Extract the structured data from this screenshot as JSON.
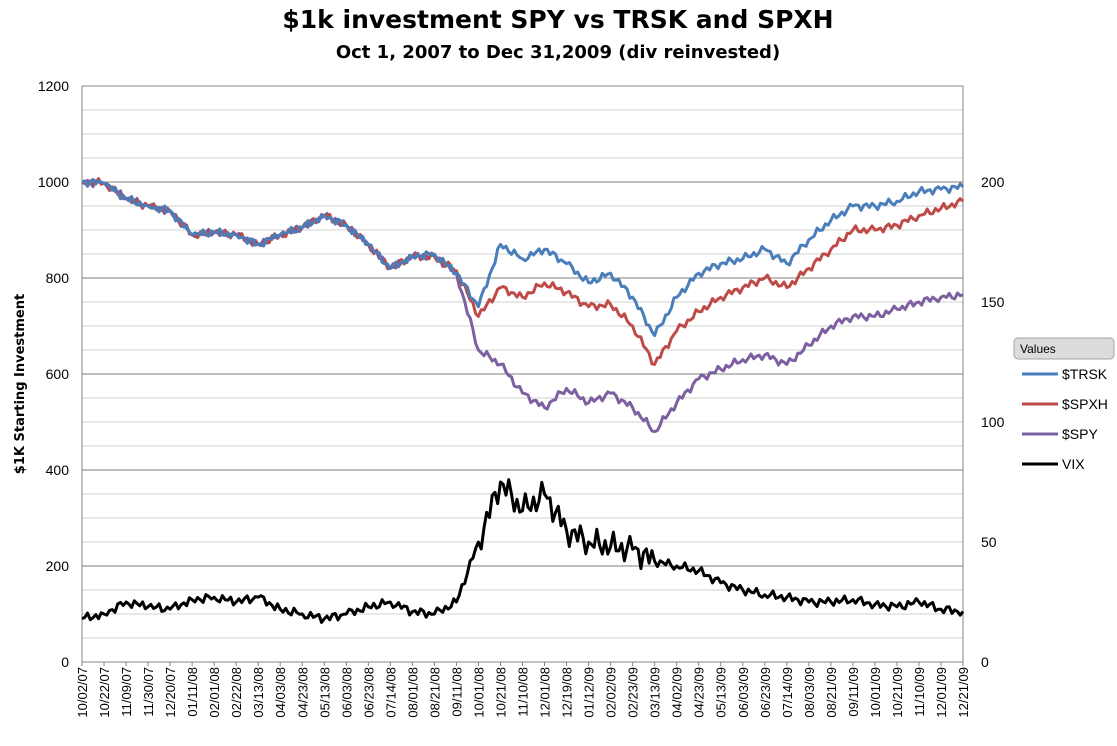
{
  "chart_data": {
    "type": "line",
    "title": "$1k investment SPY vs TRSK and SPXH",
    "subtitle": "Oct 1, 2007 to Dec 31,2009 (div reinvested)",
    "ylabel": "$1K Starting Investment",
    "ylim": [
      0,
      1200
    ],
    "y_ticks": [
      "0",
      "200",
      "400",
      "600",
      "800",
      "1000",
      "1200"
    ],
    "y2lim": [
      0,
      240
    ],
    "y2_ticks": [
      "0",
      "50",
      "100",
      "150",
      "200"
    ],
    "x": [
      "10/02/07",
      "10/22/07",
      "11/09/07",
      "11/30/07",
      "12/20/07",
      "01/11/08",
      "02/01/08",
      "02/22/08",
      "03/13/08",
      "04/03/08",
      "04/23/08",
      "05/13/08",
      "06/03/08",
      "06/23/08",
      "07/14/08",
      "08/01/08",
      "08/21/08",
      "09/11/08",
      "10/01/08",
      "10/21/08",
      "11/10/08",
      "12/01/08",
      "12/19/08",
      "01/12/09",
      "02/02/09",
      "02/23/09",
      "03/13/09",
      "04/02/09",
      "04/23/09",
      "05/13/09",
      "06/03/09",
      "06/23/09",
      "07/14/09",
      "08/03/09",
      "08/21/09",
      "09/11/09",
      "10/01/09",
      "10/21/09",
      "11/10/09",
      "12/01/09",
      "12/21/09"
    ],
    "legend": {
      "title": "Values",
      "position": "right"
    },
    "grid": true,
    "series": [
      {
        "name": "$TRSK",
        "axis": "left",
        "color": "#4a7ebb",
        "values": [
          1000,
          998,
          965,
          950,
          940,
          890,
          895,
          890,
          870,
          890,
          905,
          930,
          910,
          870,
          820,
          845,
          850,
          810,
          740,
          870,
          840,
          860,
          830,
          790,
          810,
          760,
          680,
          760,
          810,
          830,
          840,
          860,
          830,
          880,
          920,
          950,
          950,
          960,
          980,
          985,
          990
        ]
      },
      {
        "name": "$SPXH",
        "axis": "left",
        "color": "#be4b48",
        "values": [
          1000,
          998,
          965,
          950,
          940,
          890,
          895,
          890,
          870,
          890,
          905,
          930,
          910,
          870,
          820,
          845,
          845,
          815,
          720,
          780,
          760,
          790,
          770,
          740,
          745,
          700,
          620,
          690,
          730,
          760,
          780,
          800,
          780,
          820,
          860,
          900,
          900,
          910,
          930,
          945,
          960
        ]
      },
      {
        "name": "$SPY",
        "axis": "left",
        "color": "#7d60a0",
        "values": [
          1000,
          998,
          965,
          950,
          940,
          890,
          895,
          890,
          870,
          890,
          905,
          930,
          910,
          870,
          820,
          845,
          845,
          810,
          650,
          620,
          560,
          530,
          570,
          540,
          560,
          530,
          480,
          540,
          590,
          610,
          630,
          640,
          620,
          660,
          700,
          720,
          720,
          735,
          750,
          760,
          765
        ]
      },
      {
        "name": "VIX",
        "axis": "right",
        "color": "#000000",
        "values": [
          18,
          20,
          25,
          23,
          22,
          26,
          27,
          25,
          27,
          22,
          20,
          18,
          20,
          23,
          25,
          21,
          20,
          25,
          50,
          75,
          63,
          70,
          55,
          50,
          48,
          47,
          42,
          40,
          38,
          33,
          30,
          28,
          27,
          25,
          25,
          26,
          24,
          23,
          25,
          22,
          21
        ]
      }
    ]
  }
}
